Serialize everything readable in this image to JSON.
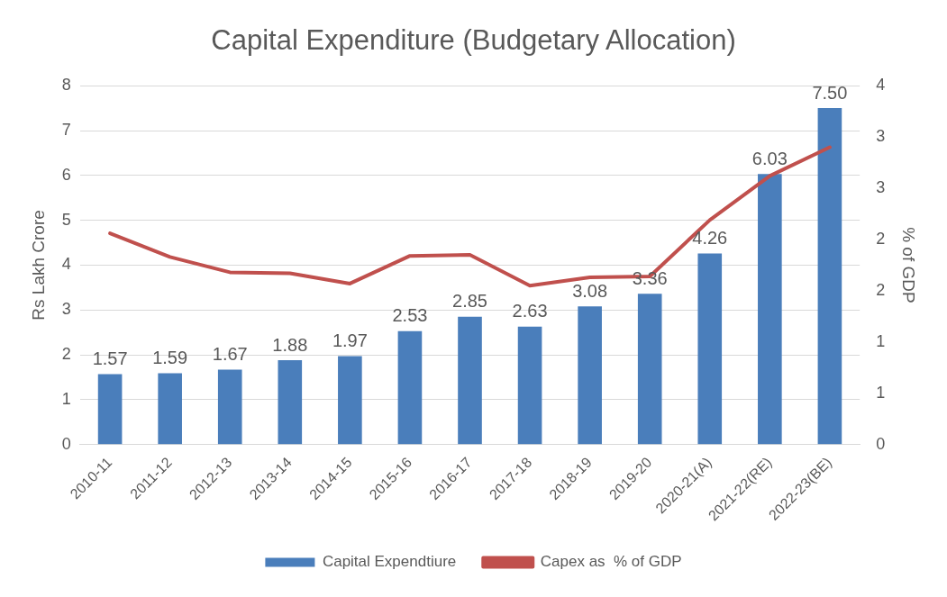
{
  "chart_data": {
    "type": "bar",
    "title": "Capital Expenditure (Budgetary Allocation)",
    "ylabel": "Rs Lakh Crore",
    "y2label": "% of GDP",
    "categories": [
      "2010-11",
      "2011-12",
      "2012-13",
      "2013-14",
      "2014-15",
      "2015-16",
      "2016-17",
      "2017-18",
      "2018-19",
      "2019-20",
      "2020-21(A)",
      "2021-22(RE)",
      "2022-23(BE)"
    ],
    "series": [
      {
        "name": "Capital Expendtiure",
        "color": "#4a7ebb",
        "values": [
          1.57,
          1.59,
          1.67,
          1.88,
          1.97,
          2.53,
          2.85,
          2.63,
          3.08,
          3.36,
          4.26,
          6.03,
          7.5
        ],
        "value_labels": [
          "1.57",
          "1.59",
          "1.67",
          "1.88",
          "1.97",
          "2.53",
          "2.85",
          "2.63",
          "3.08",
          "3.36",
          "4.26",
          "6.03",
          "7.50"
        ]
      },
      {
        "name": "Capex as  % of GDP",
        "type": "line",
        "axis": "y2",
        "color": "#c0504d",
        "values": [
          2.06,
          1.83,
          1.68,
          1.67,
          1.57,
          1.84,
          1.85,
          1.55,
          1.63,
          1.64,
          2.19,
          2.62,
          2.9
        ]
      }
    ],
    "ylim": [
      0,
      8
    ],
    "yticks": [
      0,
      1,
      2,
      3,
      4,
      5,
      6,
      7,
      8
    ],
    "y2lim": [
      0,
      3.5
    ],
    "y2ticks": [
      0,
      {
        "value": 0.5,
        "label": "1"
      },
      1,
      {
        "value": 1.5,
        "label": "2"
      },
      2,
      {
        "value": 2.5,
        "label": "3"
      },
      3,
      {
        "value": 3.5,
        "label": "4"
      }
    ],
    "grid": "y",
    "legend": "bottom",
    "marker": "none"
  }
}
